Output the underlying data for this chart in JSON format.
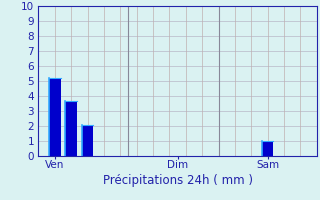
{
  "bar_positions": [
    1,
    2,
    3,
    14
  ],
  "bar_values": [
    5.2,
    3.7,
    2.1,
    1.0
  ],
  "bar_color": "#0000cc",
  "bar_edge_color": "#33aaff",
  "bar_width": 0.7,
  "xlabel": "Précipitations 24h ( mm )",
  "ylim": [
    0,
    10
  ],
  "xlim": [
    0,
    17
  ],
  "yticks": [
    0,
    1,
    2,
    3,
    4,
    5,
    6,
    7,
    8,
    9,
    10
  ],
  "xtick_positions": [
    1,
    8.5,
    14
  ],
  "xtick_labels": [
    "Ven",
    "Dim",
    "Sam"
  ],
  "background_color": "#daf2f2",
  "grid_color_h": "#b8b8c8",
  "grid_color_v": "#c0b0b0",
  "vline_x": [
    5.5,
    11.0
  ],
  "vline_color": "#888899",
  "xlabel_color": "#2222aa",
  "xlabel_fontsize": 8.5,
  "tick_label_color": "#2222aa",
  "tick_fontsize": 7.5,
  "axis_color": "#2222aa"
}
